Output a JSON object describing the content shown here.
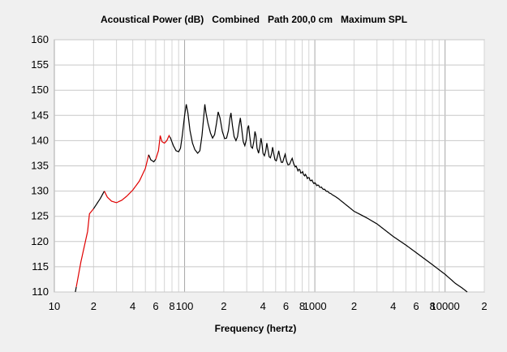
{
  "chart_data": {
    "type": "line",
    "title": "Acoustical Power (dB)   Combined   Path 200,0 cm   Maximum SPL",
    "xlabel": "Frequency (hertz)",
    "ylabel": "",
    "x_scale": "log",
    "xlim": [
      10,
      20000
    ],
    "ylim": [
      110,
      160
    ],
    "y_ticks": [
      110,
      115,
      120,
      125,
      130,
      135,
      140,
      145,
      150,
      155,
      160
    ],
    "x_ticks": [
      {
        "value": 10,
        "label": "10"
      },
      {
        "value": 20,
        "label": "2"
      },
      {
        "value": 40,
        "label": "4"
      },
      {
        "value": 60,
        "label": "6"
      },
      {
        "value": 80,
        "label": "8"
      },
      {
        "value": 100,
        "label": "100"
      },
      {
        "value": 200,
        "label": "2"
      },
      {
        "value": 400,
        "label": "4"
      },
      {
        "value": 600,
        "label": "6"
      },
      {
        "value": 800,
        "label": "8"
      },
      {
        "value": 1000,
        "label": "1000"
      },
      {
        "value": 2000,
        "label": "2"
      },
      {
        "value": 4000,
        "label": "4"
      },
      {
        "value": 6000,
        "label": "6"
      },
      {
        "value": 8000,
        "label": "8"
      },
      {
        "value": 10000,
        "label": "10000"
      },
      {
        "value": 20000,
        "label": "2"
      }
    ],
    "grid": true,
    "colors": {
      "limited": "#e00000",
      "normal": "#000000",
      "grid": "#c8c8c8",
      "background": "#ffffff"
    },
    "series": [
      {
        "values": [
          [
            14.5,
            110
          ],
          [
            16,
            116
          ],
          [
            18,
            122
          ],
          [
            18.6,
            125.5
          ],
          [
            20.0,
            126.5
          ],
          [
            22.5,
            128.5
          ],
          [
            24.2,
            130.0
          ],
          [
            25.5,
            128.8
          ],
          [
            27.5,
            128.0
          ],
          [
            30,
            127.7
          ],
          [
            33,
            128.2
          ],
          [
            36,
            129.0
          ],
          [
            40,
            130.2
          ],
          [
            45,
            132.0
          ],
          [
            50,
            134.5
          ],
          [
            53,
            137.2
          ],
          [
            55,
            136.2
          ],
          [
            58,
            135.8
          ],
          [
            60,
            136.3
          ],
          [
            63,
            138.0
          ],
          [
            65,
            141.0
          ],
          [
            67,
            139.8
          ],
          [
            70,
            139.5
          ],
          [
            73,
            140.0
          ],
          [
            76,
            141.0
          ],
          [
            78,
            140.5
          ],
          [
            82,
            139.0
          ],
          [
            86,
            138.0
          ],
          [
            90,
            137.8
          ],
          [
            93,
            138.5
          ],
          [
            96,
            141.0
          ],
          [
            100,
            145.0
          ],
          [
            103,
            147.2
          ],
          [
            106,
            145.5
          ],
          [
            110,
            142.0
          ],
          [
            115,
            139.5
          ],
          [
            120,
            138.2
          ],
          [
            126,
            137.5
          ],
          [
            131,
            138.0
          ],
          [
            136,
            141.0
          ],
          [
            140,
            144.5
          ],
          [
            143,
            147.2
          ],
          [
            146,
            145.5
          ],
          [
            151,
            143.5
          ],
          [
            158,
            141.5
          ],
          [
            164,
            140.5
          ],
          [
            170,
            141.2
          ],
          [
            176,
            143.5
          ],
          [
            181,
            145.7
          ],
          [
            187,
            144.5
          ],
          [
            195,
            141.8
          ],
          [
            203,
            140.4
          ],
          [
            210,
            140.5
          ],
          [
            217,
            142.0
          ],
          [
            223,
            144.5
          ],
          [
            227,
            145.5
          ],
          [
            233,
            143.0
          ],
          [
            240,
            140.8
          ],
          [
            248,
            140.0
          ],
          [
            255,
            140.8
          ],
          [
            262,
            143.0
          ],
          [
            268,
            144.5
          ],
          [
            274,
            142.5
          ],
          [
            282,
            139.8
          ],
          [
            290,
            139.0
          ],
          [
            298,
            140.2
          ],
          [
            305,
            142.5
          ],
          [
            310,
            143.0
          ],
          [
            316,
            141.0
          ],
          [
            324,
            138.8
          ],
          [
            332,
            138.5
          ],
          [
            340,
            139.8
          ],
          [
            347,
            141.8
          ],
          [
            353,
            141.0
          ],
          [
            360,
            138.5
          ],
          [
            370,
            137.5
          ],
          [
            378,
            138.8
          ],
          [
            386,
            140.5
          ],
          [
            392,
            139.5
          ],
          [
            400,
            137.5
          ],
          [
            410,
            137.0
          ],
          [
            420,
            138.0
          ],
          [
            428,
            139.5
          ],
          [
            436,
            138.3
          ],
          [
            446,
            136.8
          ],
          [
            456,
            136.6
          ],
          [
            466,
            137.5
          ],
          [
            474,
            138.7
          ],
          [
            483,
            137.5
          ],
          [
            494,
            136.2
          ],
          [
            506,
            136.0
          ],
          [
            518,
            137.0
          ],
          [
            528,
            138.0
          ],
          [
            540,
            136.7
          ],
          [
            553,
            135.7
          ],
          [
            566,
            135.7
          ],
          [
            580,
            136.6
          ],
          [
            592,
            137.3
          ],
          [
            606,
            136.0
          ],
          [
            622,
            135.2
          ],
          [
            640,
            135.3
          ],
          [
            656,
            136.0
          ],
          [
            670,
            136.5
          ],
          [
            688,
            135.4
          ],
          [
            706,
            134.8
          ],
          [
            1000,
            131.5
          ],
          [
            1500,
            128.6
          ],
          [
            2000,
            126.0
          ],
          [
            2500,
            124.7
          ],
          [
            3000,
            123.5
          ],
          [
            4000,
            121.0
          ],
          [
            5000,
            119.3
          ],
          [
            6000,
            117.8
          ],
          [
            8000,
            115.4
          ],
          [
            10000,
            113.5
          ],
          [
            12000,
            111.7
          ],
          [
            13500,
            110.8
          ],
          [
            14800,
            110
          ]
        ]
      }
    ],
    "limited_segments": [
      [
        14.5,
        20.0
      ],
      [
        24.2,
        53
      ],
      [
        60,
        76
      ]
    ]
  }
}
